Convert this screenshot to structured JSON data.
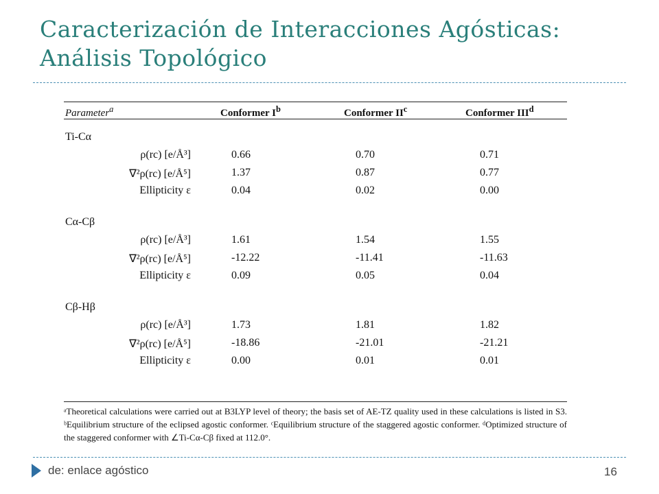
{
  "slide": {
    "title_line1": "Caracterización de Interacciones Agósticas:",
    "title_line2": "Análisis Topológico",
    "footer_text": "de: enlace agóstico",
    "page_number": "16"
  },
  "table": {
    "headers": [
      "Parameter",
      "Conformer I",
      "Conformer II",
      "Conformer III"
    ],
    "header_superscripts": [
      "a",
      "b",
      "c",
      "d"
    ],
    "groups": [
      {
        "name": "Ti-Cα",
        "rows": [
          {
            "label": "ρ(rc) [e/Å³]",
            "values": [
              "0.66",
              "0.70",
              "0.71"
            ]
          },
          {
            "label": "∇²ρ(rc) [e/Å⁵]",
            "values": [
              "1.37",
              "0.87",
              "0.77"
            ]
          },
          {
            "label": "Ellipticity ε",
            "values": [
              "0.04",
              "0.02",
              "0.00"
            ]
          }
        ]
      },
      {
        "name": "Cα-Cβ",
        "rows": [
          {
            "label": "ρ(rc) [e/Å³]",
            "values": [
              "1.61",
              "1.54",
              "1.55"
            ]
          },
          {
            "label": "∇²ρ(rc) [e/Å⁵]",
            "values": [
              "-12.22",
              "-11.41",
              "-11.63"
            ]
          },
          {
            "label": "Ellipticity ε",
            "values": [
              "0.09",
              "0.05",
              "0.04"
            ]
          }
        ]
      },
      {
        "name": "Cβ-Hβ",
        "rows": [
          {
            "label": "ρ(rc) [e/Å³]",
            "values": [
              "1.73",
              "1.81",
              "1.82"
            ]
          },
          {
            "label": "∇²ρ(rc) [e/Å⁵]",
            "values": [
              "-18.86",
              "-21.01",
              "-21.21"
            ]
          },
          {
            "label": "Ellipticity ε",
            "values": [
              "0.00",
              "0.01",
              "0.01"
            ]
          }
        ]
      }
    ],
    "footnote": "ᵃTheoretical calculations were carried out at B3LYP level of theory; the basis set of AE-TZ quality used in these calculations is listed in S3. ᵇEquilibrium structure of the eclipsed agostic conformer. ᶜEquilibrium structure of the staggered agostic conformer. ᵈOptimized structure of the staggered conformer with ∠Ti-Cα-Cβ fixed at 112.0°."
  }
}
